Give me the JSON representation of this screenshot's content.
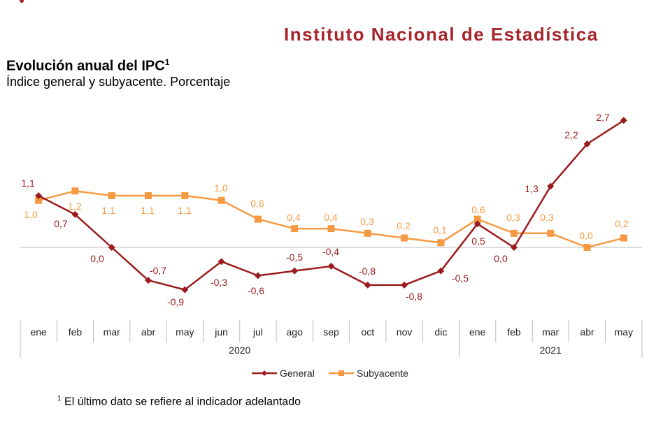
{
  "header": {
    "institution": "Instituto Nacional de Estadística"
  },
  "title": "Evolución anual del IPC",
  "title_sup": "1",
  "subtitle": "Índice general y subyacente. Porcentaje",
  "footnote_mark": "1",
  "footnote": "El último dato se refiere al indicador adelantado",
  "chart_data": {
    "type": "line",
    "categories": [
      "ene",
      "feb",
      "mar",
      "abr",
      "may",
      "jun",
      "jul",
      "ago",
      "sep",
      "oct",
      "nov",
      "dic",
      "ene",
      "feb",
      "mar",
      "abr",
      "may"
    ],
    "year_groups": [
      {
        "label": "2020",
        "count": 12
      },
      {
        "label": "2021",
        "count": 5
      }
    ],
    "series": [
      {
        "name": "General",
        "color": "#9b1c1f",
        "marker": "diamond",
        "values": [
          1.1,
          0.7,
          0.0,
          -0.7,
          -0.9,
          -0.3,
          -0.6,
          -0.5,
          -0.4,
          -0.8,
          -0.8,
          -0.5,
          0.5,
          0.0,
          1.3,
          2.2,
          2.7
        ],
        "labels": [
          "1,1",
          "0,7",
          "0,0",
          "-0,7",
          "-0,9",
          "-0,3",
          "-0,6",
          "-0,5",
          "-0,4",
          "-0,8",
          "-0,8",
          "-0,5",
          "0,5",
          "0,0",
          "1,3",
          "2,2",
          "2,7"
        ]
      },
      {
        "name": "Subyacente",
        "color": "#f59a42",
        "marker": "square",
        "values": [
          1.0,
          1.2,
          1.1,
          1.1,
          1.1,
          1.0,
          0.6,
          0.4,
          0.4,
          0.3,
          0.2,
          0.1,
          0.6,
          0.3,
          0.3,
          0.0,
          0.2
        ],
        "labels": [
          "1,0",
          "1,2",
          "1,1",
          "1,1",
          "1,1",
          "1,0",
          "0,6",
          "0,4",
          "0,4",
          "0,3",
          "0,2",
          "0,1",
          "0,6",
          "0,3",
          "0,3",
          "0,0",
          "0,2"
        ]
      }
    ],
    "legend": "bottom",
    "grid": false
  }
}
